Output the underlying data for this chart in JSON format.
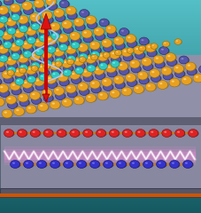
{
  "bg_top": "#4ab8c0",
  "bg_bottom": "#1a5a60",
  "orange_sphere": "#e8a020",
  "purple_sphere": "#5555aa",
  "cyan_sphere": "#30c8c0",
  "red_sphere": "#dd2222",
  "blue_sphere": "#3333cc",
  "small_orange": "#cc8800",
  "arrow_color": "#dd1111",
  "spiral_color": "#aabbee",
  "figsize": [
    2.28,
    2.4
  ],
  "dpi": 100
}
